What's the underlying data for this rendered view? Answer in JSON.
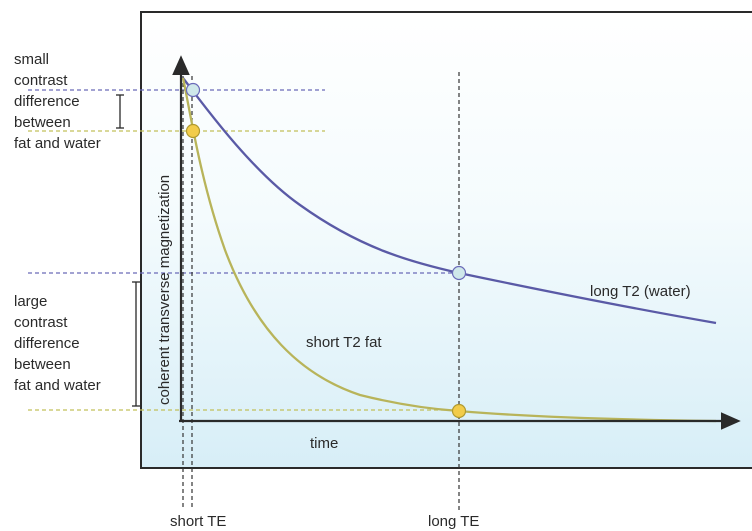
{
  "labels": {
    "small_contrast": [
      "small",
      "contrast",
      "difference",
      "between",
      "fat and water"
    ],
    "large_contrast": [
      "large",
      "contrast",
      "difference",
      "between",
      "fat and water"
    ],
    "y_axis": "coherent transverse magnetization",
    "x_axis": "time",
    "water_curve": "long T2 (water)",
    "fat_curve": "short T2 fat",
    "short_te": "short TE",
    "long_te": "long TE"
  },
  "colors": {
    "water": "#5a5aa6",
    "fat": "#b8b45a",
    "water_marker": "#cfe8ea",
    "fat_marker": "#f2cc4a",
    "water_dash": "#6a6ab8",
    "fat_dash": "#c2c05a",
    "frame": "#2a2a2a"
  }
}
